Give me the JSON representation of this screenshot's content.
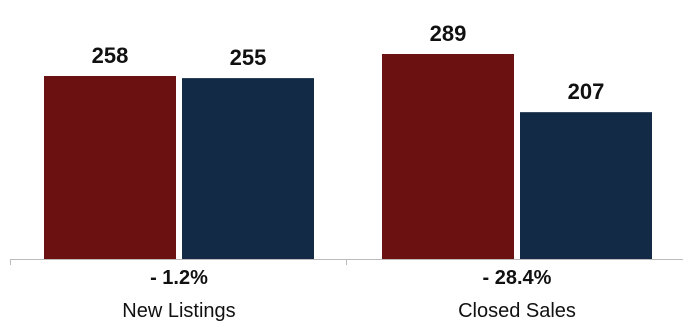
{
  "chart_data": {
    "type": "bar",
    "categories": [
      "New Listings",
      "Closed Sales"
    ],
    "series": [
      {
        "values": [
          258,
          289
        ],
        "color": "#6b1111"
      },
      {
        "values": [
          255,
          207
        ],
        "color": "#132a46"
      }
    ],
    "value_labels": [
      [
        "258",
        "255"
      ],
      [
        "289",
        "207"
      ]
    ],
    "change_labels": [
      "- 1.2%",
      "- 28.4%"
    ],
    "ylim": [
      0,
      289
    ],
    "axis_color": "#bbbbbb"
  }
}
